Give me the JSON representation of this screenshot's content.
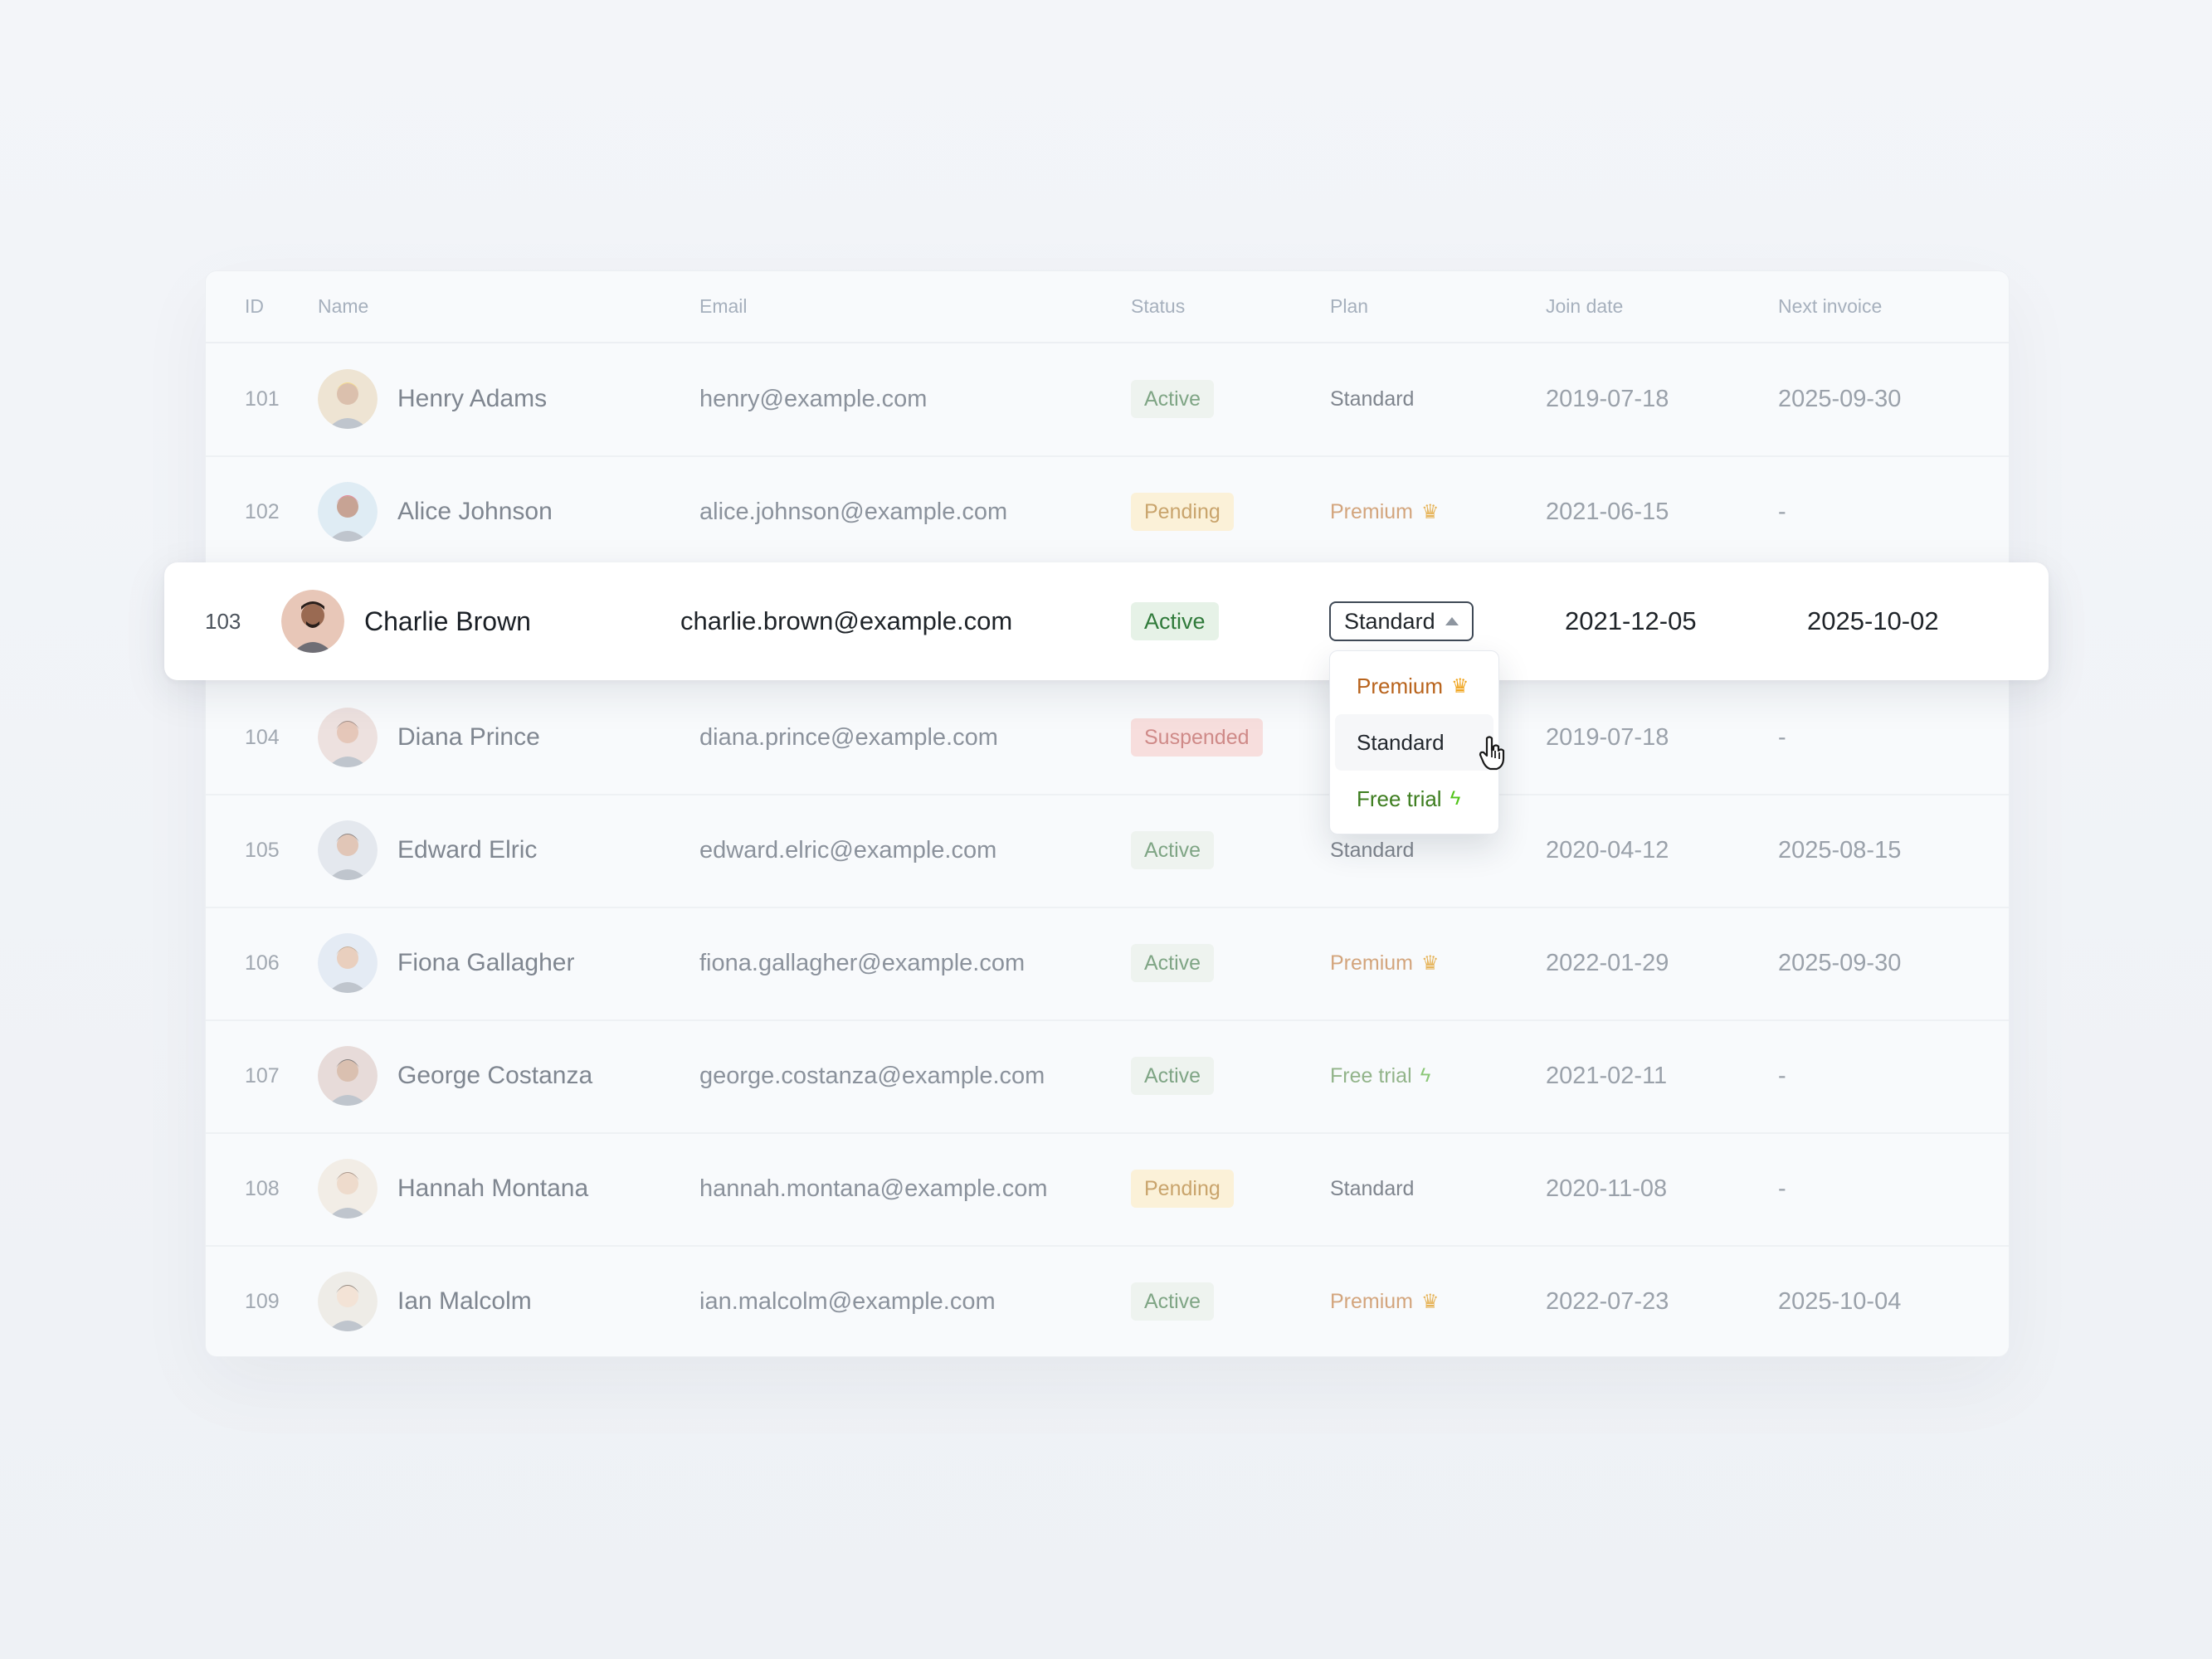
{
  "table": {
    "headers": {
      "id": "ID",
      "name": "Name",
      "email": "Email",
      "status": "Status",
      "plan": "Plan",
      "join": "Join date",
      "invoice": "Next invoice"
    },
    "rows": [
      {
        "id": "101",
        "name": "Henry Adams",
        "email": "henry@example.com",
        "status": "Active",
        "plan": "Standard",
        "join": "2019-07-18",
        "invoice": "2025-09-30"
      },
      {
        "id": "102",
        "name": "Alice Johnson",
        "email": "alice.johnson@example.com",
        "status": "Pending",
        "plan": "Premium",
        "join": "2021-06-15",
        "invoice": "-"
      },
      {
        "id": "104",
        "name": "Diana Prince",
        "email": "diana.prince@example.com",
        "status": "Suspended",
        "plan": "",
        "join": "2019-07-18",
        "invoice": "-"
      },
      {
        "id": "105",
        "name": "Edward Elric",
        "email": "edward.elric@example.com",
        "status": "Active",
        "plan": "Standard",
        "join": "2020-04-12",
        "invoice": "2025-08-15"
      },
      {
        "id": "106",
        "name": "Fiona Gallagher",
        "email": "fiona.gallagher@example.com",
        "status": "Active",
        "plan": "Premium",
        "join": "2022-01-29",
        "invoice": "2025-09-30"
      },
      {
        "id": "107",
        "name": "George Costanza",
        "email": "george.costanza@example.com",
        "status": "Active",
        "plan": "Free trial",
        "join": "2021-02-11",
        "invoice": "-"
      },
      {
        "id": "108",
        "name": "Hannah Montana",
        "email": "hannah.montana@example.com",
        "status": "Pending",
        "plan": "Standard",
        "join": "2020-11-08",
        "invoice": "-"
      },
      {
        "id": "109",
        "name": "Ian Malcolm",
        "email": "ian.malcolm@example.com",
        "status": "Active",
        "plan": "Premium",
        "join": "2022-07-23",
        "invoice": "2025-10-04"
      }
    ]
  },
  "selected_row": {
    "id": "103",
    "name": "Charlie Brown",
    "email": "charlie.brown@example.com",
    "status": "Active",
    "plan_select_value": "Standard",
    "join": "2021-12-05",
    "invoice": "2025-10-02"
  },
  "plan_dropdown": {
    "options": [
      "Premium",
      "Standard",
      "Free trial"
    ],
    "hovered": "Standard"
  },
  "icons": {
    "premium": "crown-icon",
    "free_trial": "lightning-bolt-icon",
    "select_caret": "caret-up-icon",
    "cursor": "hand-pointer-cursor"
  },
  "colors": {
    "active_text": "#2f7a3a",
    "pending_text": "#c9a46c",
    "suspended_text": "#cf8a88",
    "premium_text": "#b8631c",
    "trial_text": "#3d7d1f"
  }
}
